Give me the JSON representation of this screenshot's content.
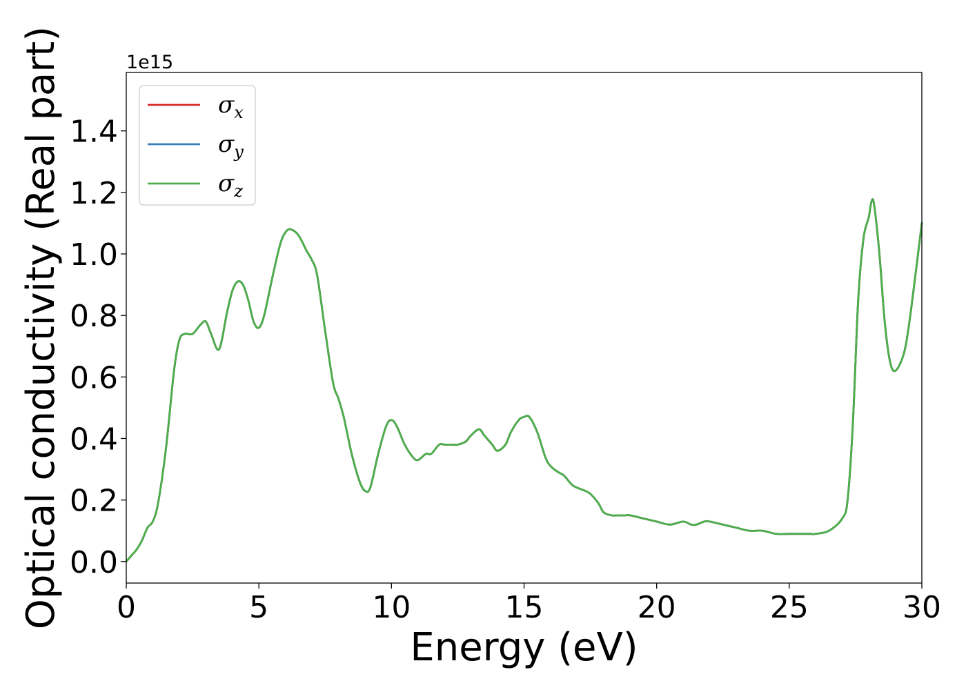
{
  "chart_data": {
    "type": "line",
    "title": "",
    "xlabel": "Energy (eV)",
    "ylabel": "Optical conductivity (Real part)",
    "y_offset_label": "1e15",
    "xlim": [
      0,
      30
    ],
    "ylim": [
      -0.07,
      1.59
    ],
    "x_ticks": [
      0,
      5,
      10,
      15,
      20,
      25,
      30
    ],
    "x_tick_labels": [
      "0",
      "5",
      "10",
      "15",
      "20",
      "25",
      "30"
    ],
    "y_ticks": [
      0.0,
      0.2,
      0.4,
      0.6,
      0.8,
      1.0,
      1.2,
      1.4
    ],
    "y_tick_labels": [
      "0.0",
      "0.2",
      "0.4",
      "0.6",
      "0.8",
      "1.0",
      "1.2",
      "1.4"
    ],
    "grid": false,
    "legend_position": "top-left",
    "x": [
      0,
      0.2,
      0.4,
      0.6,
      0.8,
      1.0,
      1.2,
      1.5,
      1.8,
      2.0,
      2.2,
      2.5,
      2.8,
      3.0,
      3.2,
      3.5,
      3.8,
      4.0,
      4.2,
      4.4,
      4.6,
      4.8,
      5.0,
      5.2,
      5.5,
      5.8,
      6.0,
      6.2,
      6.5,
      6.8,
      7.0,
      7.2,
      7.5,
      7.8,
      8.0,
      8.2,
      8.5,
      8.8,
      9.0,
      9.2,
      9.5,
      9.8,
      10.0,
      10.2,
      10.5,
      10.8,
      11.0,
      11.3,
      11.5,
      11.8,
      12.0,
      12.3,
      12.5,
      12.8,
      13.0,
      13.3,
      13.5,
      13.8,
      14.0,
      14.3,
      14.5,
      14.8,
      15.0,
      15.2,
      15.5,
      15.8,
      16.0,
      16.3,
      16.5,
      16.8,
      17.0,
      17.3,
      17.5,
      17.8,
      18.0,
      18.3,
      18.5,
      18.8,
      19.0,
      19.5,
      20.0,
      20.5,
      21.0,
      21.3,
      21.5,
      21.8,
      22.0,
      22.5,
      23.0,
      23.5,
      24.0,
      24.5,
      25.0,
      25.3,
      25.5,
      25.8,
      26.0,
      26.5,
      27.0,
      27.2,
      27.4,
      27.6,
      27.8,
      28.0,
      28.1,
      28.2,
      28.4,
      28.6,
      28.8,
      29.0,
      29.3,
      29.5,
      29.8,
      30.0
    ],
    "series": [
      {
        "name": "σx",
        "subscript": "x",
        "color": "#d62728",
        "values": [
          0,
          0.02,
          0.04,
          0.07,
          0.11,
          0.13,
          0.19,
          0.37,
          0.62,
          0.72,
          0.74,
          0.74,
          0.77,
          0.78,
          0.74,
          0.69,
          0.81,
          0.88,
          0.91,
          0.9,
          0.85,
          0.78,
          0.76,
          0.8,
          0.92,
          1.03,
          1.07,
          1.08,
          1.06,
          1.01,
          0.98,
          0.93,
          0.75,
          0.58,
          0.53,
          0.47,
          0.35,
          0.26,
          0.23,
          0.24,
          0.35,
          0.44,
          0.46,
          0.44,
          0.38,
          0.34,
          0.33,
          0.35,
          0.35,
          0.38,
          0.38,
          0.38,
          0.38,
          0.39,
          0.41,
          0.43,
          0.41,
          0.38,
          0.36,
          0.38,
          0.42,
          0.46,
          0.47,
          0.47,
          0.42,
          0.34,
          0.31,
          0.29,
          0.28,
          0.25,
          0.24,
          0.23,
          0.22,
          0.19,
          0.16,
          0.15,
          0.15,
          0.15,
          0.15,
          0.14,
          0.13,
          0.12,
          0.13,
          0.12,
          0.12,
          0.13,
          0.13,
          0.12,
          0.11,
          0.1,
          0.1,
          0.09,
          0.09,
          0.09,
          0.09,
          0.09,
          0.09,
          0.1,
          0.14,
          0.2,
          0.45,
          0.85,
          1.05,
          1.12,
          1.17,
          1.16,
          1.0,
          0.78,
          0.65,
          0.62,
          0.67,
          0.76,
          0.96,
          1.1
        ]
      },
      {
        "name": "σy",
        "subscript": "y",
        "color": "#3c7eb8",
        "values": [
          0,
          0.02,
          0.04,
          0.07,
          0.11,
          0.13,
          0.19,
          0.37,
          0.62,
          0.72,
          0.74,
          0.74,
          0.77,
          0.78,
          0.74,
          0.69,
          0.81,
          0.88,
          0.91,
          0.9,
          0.85,
          0.78,
          0.76,
          0.8,
          0.92,
          1.03,
          1.07,
          1.08,
          1.06,
          1.01,
          0.98,
          0.93,
          0.75,
          0.58,
          0.53,
          0.47,
          0.35,
          0.26,
          0.23,
          0.24,
          0.35,
          0.44,
          0.46,
          0.44,
          0.38,
          0.34,
          0.33,
          0.35,
          0.35,
          0.38,
          0.38,
          0.38,
          0.38,
          0.39,
          0.41,
          0.43,
          0.41,
          0.38,
          0.36,
          0.38,
          0.42,
          0.46,
          0.47,
          0.47,
          0.42,
          0.34,
          0.31,
          0.29,
          0.28,
          0.25,
          0.24,
          0.23,
          0.22,
          0.19,
          0.16,
          0.15,
          0.15,
          0.15,
          0.15,
          0.14,
          0.13,
          0.12,
          0.13,
          0.12,
          0.12,
          0.13,
          0.13,
          0.12,
          0.11,
          0.1,
          0.1,
          0.09,
          0.09,
          0.09,
          0.09,
          0.09,
          0.09,
          0.1,
          0.14,
          0.2,
          0.45,
          0.85,
          1.05,
          1.12,
          1.17,
          1.16,
          1.0,
          0.78,
          0.65,
          0.62,
          0.67,
          0.76,
          0.96,
          1.1
        ]
      },
      {
        "name": "σz",
        "subscript": "z",
        "color": "#4daf4a",
        "values": [
          0,
          0.02,
          0.04,
          0.07,
          0.11,
          0.13,
          0.19,
          0.37,
          0.62,
          0.72,
          0.74,
          0.74,
          0.77,
          0.78,
          0.74,
          0.69,
          0.81,
          0.88,
          0.91,
          0.9,
          0.85,
          0.78,
          0.76,
          0.8,
          0.92,
          1.03,
          1.07,
          1.08,
          1.06,
          1.01,
          0.98,
          0.93,
          0.75,
          0.58,
          0.53,
          0.47,
          0.35,
          0.26,
          0.23,
          0.24,
          0.35,
          0.44,
          0.46,
          0.44,
          0.38,
          0.34,
          0.33,
          0.35,
          0.35,
          0.38,
          0.38,
          0.38,
          0.38,
          0.39,
          0.41,
          0.43,
          0.41,
          0.38,
          0.36,
          0.38,
          0.42,
          0.46,
          0.47,
          0.47,
          0.42,
          0.34,
          0.31,
          0.29,
          0.28,
          0.25,
          0.24,
          0.23,
          0.22,
          0.19,
          0.16,
          0.15,
          0.15,
          0.15,
          0.15,
          0.14,
          0.13,
          0.12,
          0.13,
          0.12,
          0.12,
          0.13,
          0.13,
          0.12,
          0.11,
          0.1,
          0.1,
          0.09,
          0.09,
          0.09,
          0.09,
          0.09,
          0.09,
          0.1,
          0.14,
          0.2,
          0.45,
          0.85,
          1.05,
          1.12,
          1.17,
          1.16,
          1.0,
          0.78,
          0.65,
          0.62,
          0.67,
          0.76,
          0.96,
          1.1
        ]
      }
    ]
  }
}
